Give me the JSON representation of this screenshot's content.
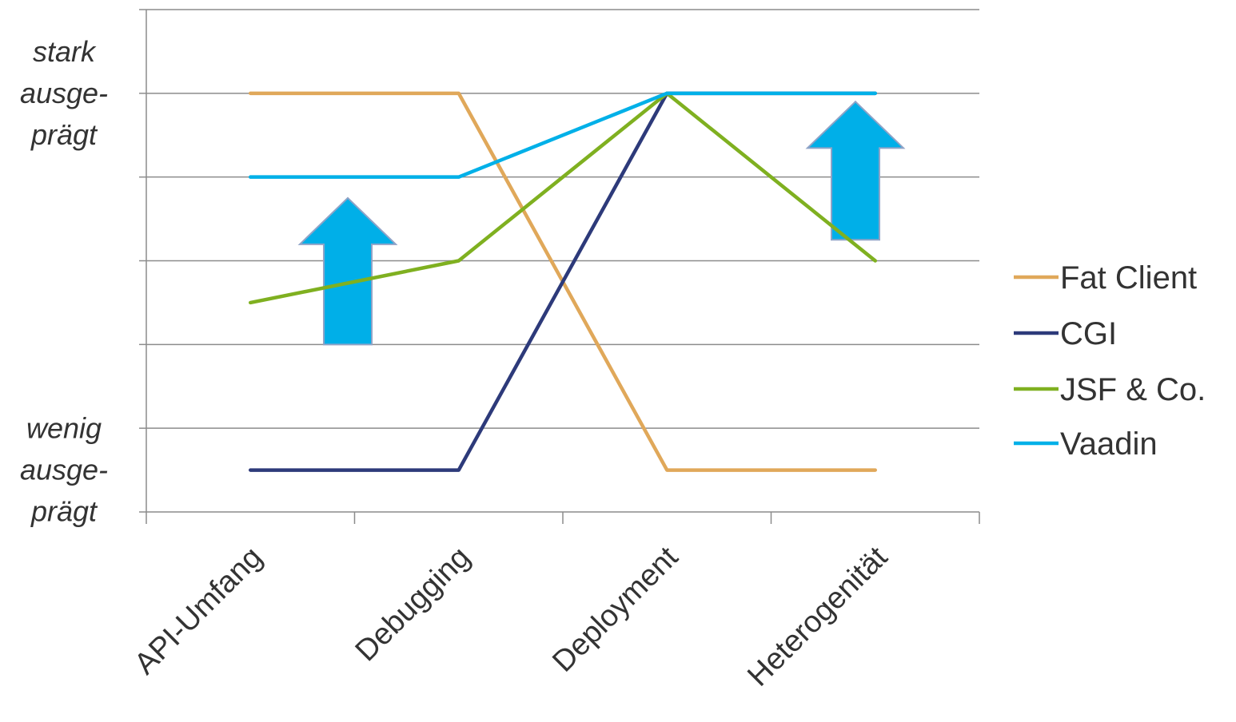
{
  "chart_data": {
    "type": "line",
    "categories": [
      "API-Umfang",
      "Debugging",
      "Deployment",
      "Heterogenität"
    ],
    "ylim": [
      0,
      6
    ],
    "gridlines": true,
    "y_labels": [
      {
        "value": 5,
        "lines": [
          "stark",
          "ausge-",
          "prägt"
        ]
      },
      {
        "value": 0.5,
        "lines": [
          "wenig",
          "ausge-",
          "prägt"
        ]
      }
    ],
    "series": [
      {
        "name": "Fat Client",
        "color": "#e0a85a",
        "values": [
          5,
          5,
          0.5,
          0.5
        ]
      },
      {
        "name": "CGI",
        "color": "#2d3a7a",
        "values": [
          0.5,
          0.5,
          5,
          5
        ]
      },
      {
        "name": "JSF & Co.",
        "color": "#7fb020",
        "values": [
          2.5,
          3,
          5,
          3
        ]
      },
      {
        "name": "Vaadin",
        "color": "#00b0e8",
        "values": [
          4,
          4,
          5,
          5
        ]
      }
    ],
    "legend_position": "right",
    "annotations": [
      {
        "type": "up-arrow",
        "category": "API-Umfang–Debugging",
        "from": 2,
        "to": 3.75,
        "fill": "#00afe8",
        "stroke": "#8fa3c7"
      },
      {
        "type": "up-arrow",
        "category": "Heterogenität",
        "from": 3.25,
        "to": 4.9,
        "fill": "#00afe8",
        "stroke": "#8fa3c7"
      }
    ]
  }
}
